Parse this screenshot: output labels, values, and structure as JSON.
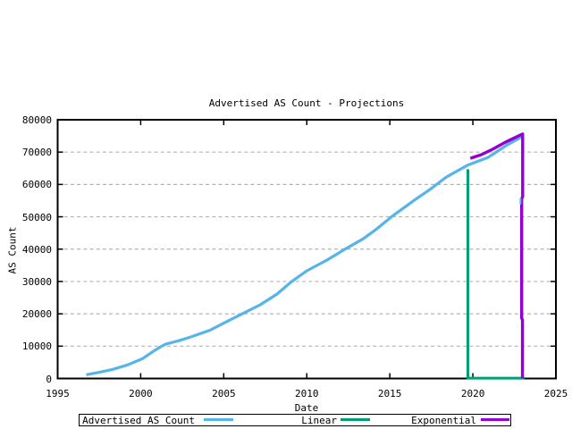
{
  "title": "Advertised AS Count - Projections",
  "axes": {
    "xlabel": "Date",
    "ylabel": "AS Count",
    "xlim": [
      1995,
      2025
    ],
    "ylim": [
      0,
      80000
    ],
    "x_ticks": [
      1995,
      2000,
      2005,
      2010,
      2015,
      2020,
      2025
    ],
    "y_ticks": [
      0,
      10000,
      20000,
      30000,
      40000,
      50000,
      60000,
      70000,
      80000
    ],
    "grid": "horizontal dashed gray gridlines at y ticks, mirrored ticks on all borders"
  },
  "legend": {
    "position": "below x-axis, boxed, horizontal",
    "entries": [
      {
        "label": "Advertised AS Count",
        "color": "#56b4e9"
      },
      {
        "label": "Linear",
        "color": "#009e73"
      },
      {
        "label": "Exponential",
        "color": "#9400d3"
      }
    ]
  },
  "colors": {
    "background": "#ffffff",
    "border": "#000000",
    "grid": "#b3b3b3",
    "advertised": "#56b4e9",
    "linear": "#009e73",
    "exponential": "#9400d3"
  },
  "chart_data": {
    "type": "line",
    "title": "Advertised AS Count - Projections",
    "xlabel": "Date",
    "ylabel": "AS Count",
    "xlim": [
      1995,
      2025
    ],
    "ylim": [
      0,
      80000
    ],
    "legend_position": "bottom boxed",
    "series": [
      {
        "name": "Advertised AS Count",
        "color": "#56b4e9",
        "width": 3.2,
        "points": [
          [
            1996.72,
            1150
          ],
          [
            1997.5,
            1900
          ],
          [
            1998.3,
            2800
          ],
          [
            1999.2,
            4200
          ],
          [
            2000.1,
            6100
          ],
          [
            2000.7,
            8200
          ],
          [
            2001.2,
            9800
          ],
          [
            2001.5,
            10600
          ],
          [
            2002.3,
            11700
          ],
          [
            2003.1,
            13000
          ],
          [
            2004.2,
            15000
          ],
          [
            2005,
            17100
          ],
          [
            2006,
            19700
          ],
          [
            2007.2,
            22800
          ],
          [
            2008.2,
            26100
          ],
          [
            2009.1,
            30000
          ],
          [
            2010,
            33300
          ],
          [
            2011.2,
            36600
          ],
          [
            2012.3,
            40000
          ],
          [
            2013.4,
            43200
          ],
          [
            2014.2,
            46200
          ],
          [
            2015.1,
            50000
          ],
          [
            2016.5,
            55200
          ],
          [
            2017.4,
            58400
          ],
          [
            2018.4,
            62300
          ],
          [
            2019.7,
            66000
          ],
          [
            2020.9,
            68300
          ],
          [
            2022,
            72000
          ],
          [
            2023,
            74900
          ]
        ]
      },
      {
        "name": "Linear",
        "color": "#009e73",
        "width": 3,
        "note": "projection rendered with drop-to-zero artifact: vertical line at 2019.7 down to 0, then along 0 to 2023.1",
        "points": [
          [
            2019.7,
            64700
          ],
          [
            2019.7,
            100
          ],
          [
            2023.1,
            100
          ]
        ]
      },
      {
        "name": "Exponential",
        "color": "#9400d3",
        "width": 3.4,
        "note": "projection from ~2019.85 to 2023 peaking ~75600, then vertical drop-to-zero artifact with small jogs",
        "points": [
          [
            2019.85,
            68100
          ],
          [
            2020.5,
            69200
          ],
          [
            2021.2,
            70900
          ],
          [
            2021.9,
            72900
          ],
          [
            2022.5,
            74400
          ],
          [
            2023,
            75600
          ],
          [
            2023,
            56200
          ],
          [
            2022.94,
            55600
          ],
          [
            2022.94,
            18700
          ],
          [
            2022.99,
            18100
          ],
          [
            2022.99,
            100
          ]
        ]
      },
      {
        "name": "advertised-endline-artifact",
        "color": "#56b4e9",
        "width": 2,
        "note": "tiny blue sliver peeking left of the purple vertical drop",
        "points": [
          [
            2022.87,
            55800
          ],
          [
            2022.87,
            53800
          ]
        ]
      }
    ]
  }
}
